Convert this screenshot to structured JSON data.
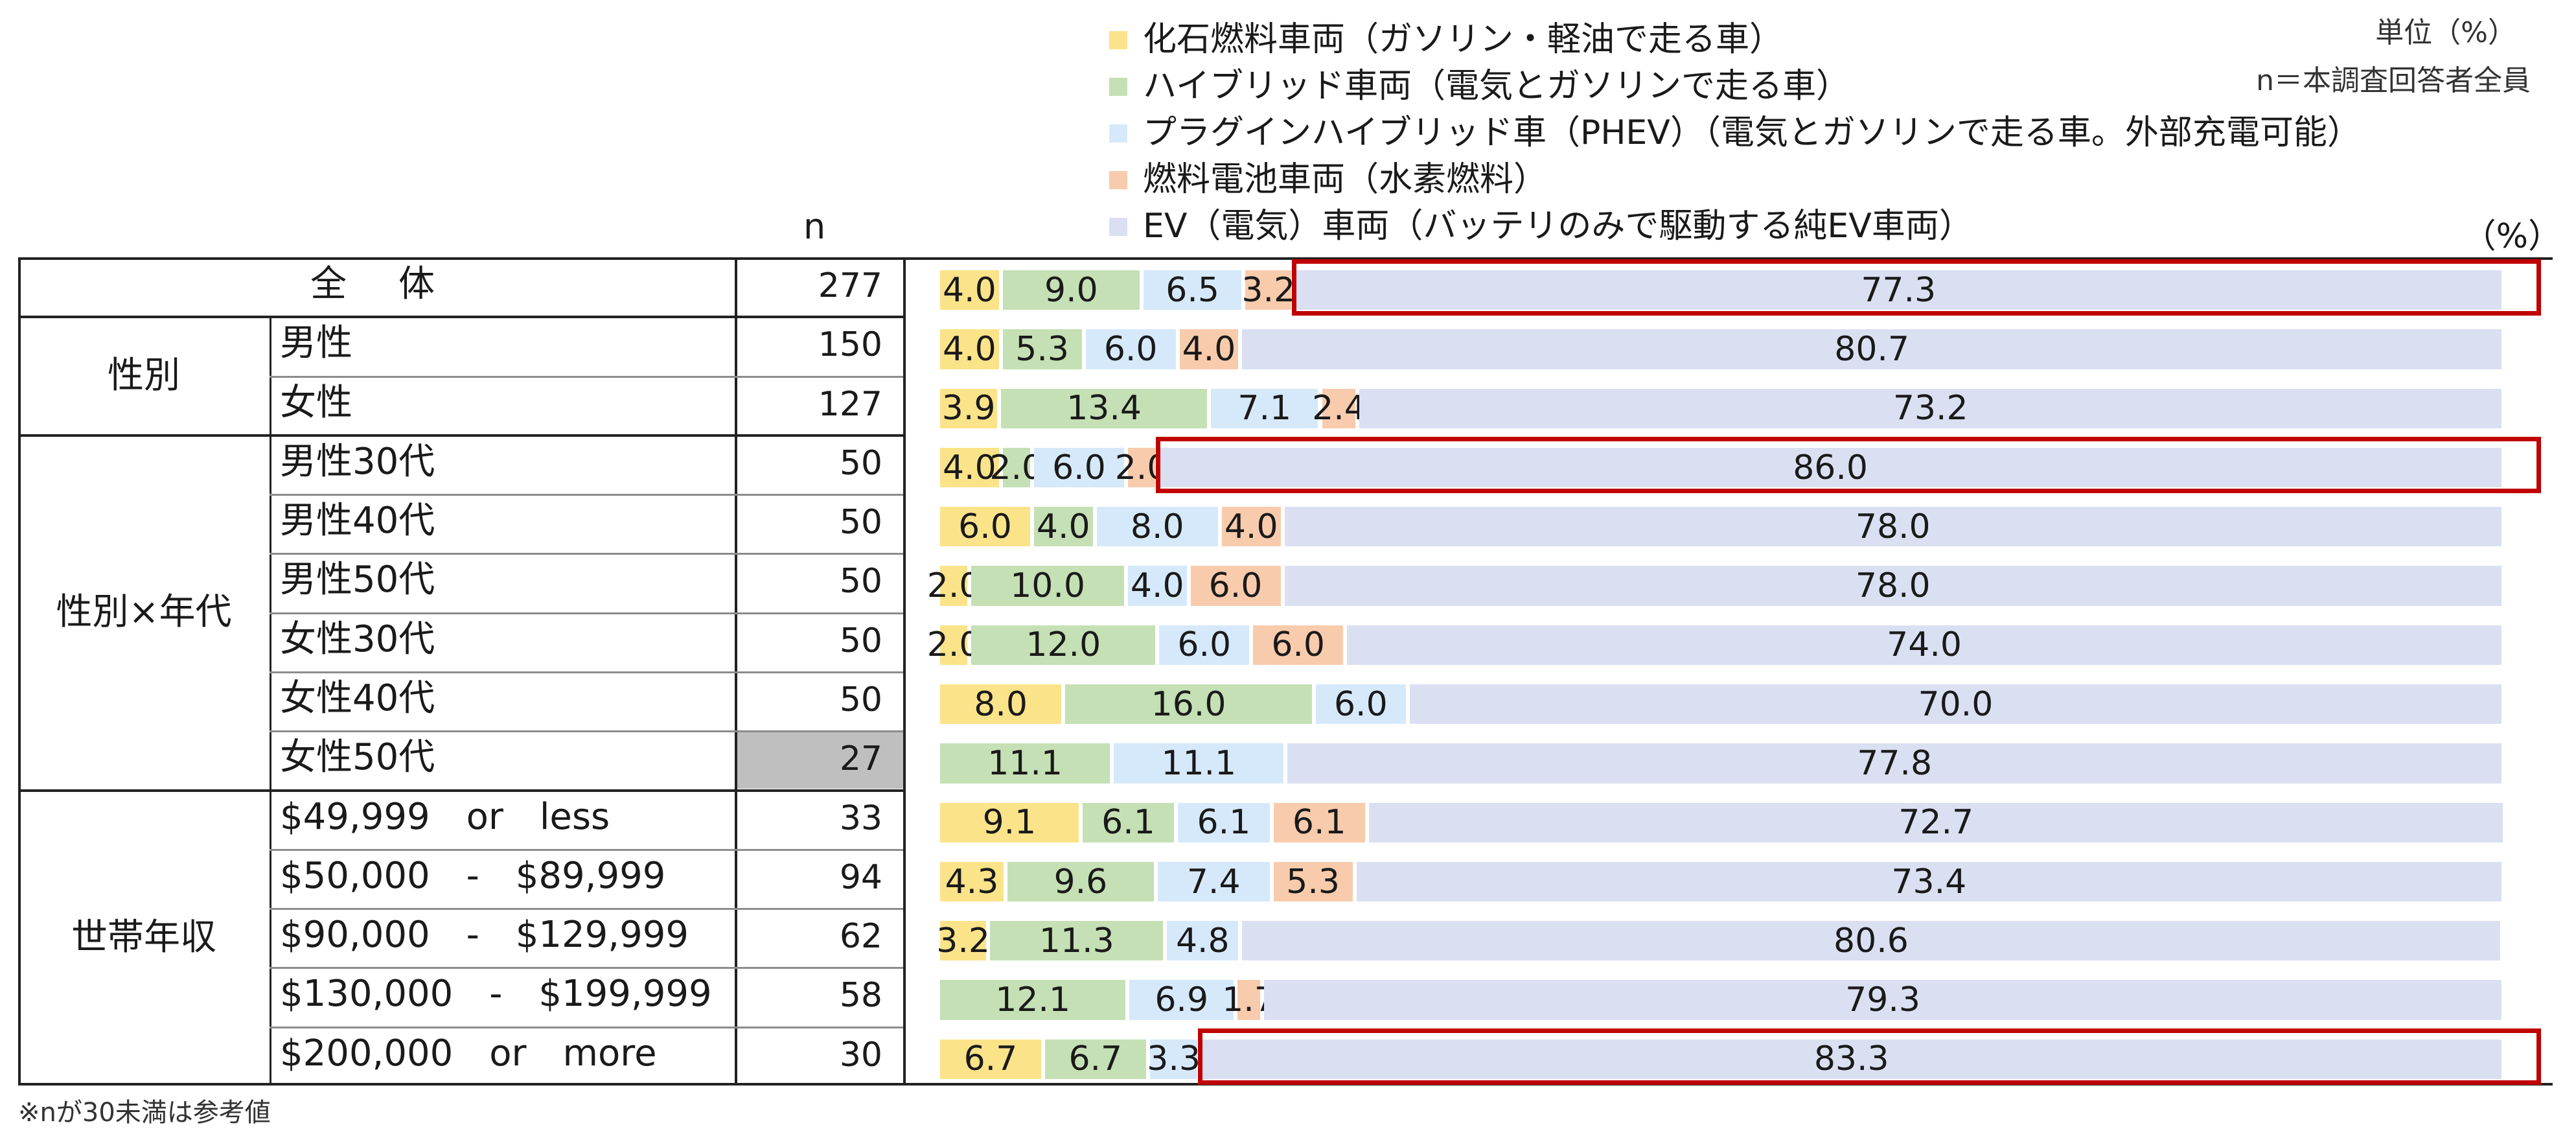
{
  "header": {
    "unit": "単位（%）",
    "base": "n＝本調査回答者全員",
    "n_header": "n",
    "pct": "（%）"
  },
  "footnote": "※nが30未満は参考値",
  "legend": [
    {
      "label": "化石燃料車両（ガソリン・軽油で走る車）",
      "color": "#fbe38a"
    },
    {
      "label": "ハイブリッド車両（電気とガソリンで走る車）",
      "color": "#c5e0b4"
    },
    {
      "label": "プラグインハイブリッド車（PHEV）（電気とガソリンで走る車。外部充電可能）",
      "color": "#d6e9fa"
    },
    {
      "label": "燃料電池車両（水素燃料）",
      "color": "#f8cbad"
    },
    {
      "label": "EV（電気）車両（バッテリのみで駆動する純EV車両）",
      "color": "#dae0f2"
    }
  ],
  "groups": [
    {
      "name": "性別",
      "first": 1,
      "count": 2
    },
    {
      "name": "性別×年代",
      "first": 3,
      "count": 6
    },
    {
      "name": "世帯年収",
      "first": 9,
      "count": 5
    }
  ],
  "chart_data": {
    "type": "bar",
    "stacked": true,
    "orientation": "horizontal",
    "xlim": [
      0,
      100
    ],
    "series": [
      {
        "name": "化石燃料車両（ガソリン・軽油で走る車）",
        "color": "#fbe38a"
      },
      {
        "name": "ハイブリッド車両（電気とガソリンで走る車）",
        "color": "#c5e0b4"
      },
      {
        "name": "プラグインハイブリッド車（PHEV）（電気とガソリンで走る車。外部充電可能）",
        "color": "#d6e9fa"
      },
      {
        "name": "燃料電池車両（水素燃料）",
        "color": "#f8cbad"
      },
      {
        "name": "EV（電気）車両（バッテリのみで駆動する純EV車両）",
        "color": "#dae0f2"
      }
    ],
    "rows": [
      {
        "label": "全　体",
        "n": "277",
        "values": [
          4.0,
          9.0,
          6.5,
          3.2,
          77.3
        ],
        "highlight": true
      },
      {
        "label": "男性",
        "n": "150",
        "values": [
          4.0,
          5.3,
          6.0,
          4.0,
          80.7
        ]
      },
      {
        "label": "女性",
        "n": "127",
        "values": [
          3.9,
          13.4,
          7.1,
          2.4,
          73.2
        ]
      },
      {
        "label": "男性30代",
        "n": "50",
        "values": [
          4.0,
          2.0,
          6.0,
          2.0,
          86.0
        ],
        "highlight": true
      },
      {
        "label": "男性40代",
        "n": "50",
        "values": [
          6.0,
          4.0,
          8.0,
          4.0,
          78.0
        ]
      },
      {
        "label": "男性50代",
        "n": "50",
        "values": [
          2.0,
          10.0,
          4.0,
          6.0,
          78.0
        ]
      },
      {
        "label": "女性30代",
        "n": "50",
        "values": [
          2.0,
          12.0,
          6.0,
          6.0,
          74.0
        ]
      },
      {
        "label": "女性40代",
        "n": "50",
        "values": [
          8.0,
          16.0,
          6.0,
          0,
          70.0
        ]
      },
      {
        "label": "女性50代",
        "n": "27",
        "values": [
          0,
          11.1,
          11.1,
          0,
          77.8
        ],
        "small_sample": true
      },
      {
        "label": "$49,999　or　less",
        "n": "33",
        "values": [
          9.1,
          6.1,
          6.1,
          6.1,
          72.7
        ]
      },
      {
        "label": "$50,000　-　$89,999",
        "n": "94",
        "values": [
          4.3,
          9.6,
          7.4,
          5.3,
          73.4
        ]
      },
      {
        "label": "$90,000　-　$129,999",
        "n": "62",
        "values": [
          3.2,
          11.3,
          4.8,
          0,
          80.6
        ]
      },
      {
        "label": "$130,000　-　$199,999",
        "n": "58",
        "values": [
          0,
          12.1,
          6.9,
          1.7,
          79.3
        ]
      },
      {
        "label": "$200,000　or　more",
        "n": "30",
        "values": [
          6.7,
          6.7,
          3.3,
          0,
          83.3
        ],
        "highlight": true
      }
    ]
  }
}
